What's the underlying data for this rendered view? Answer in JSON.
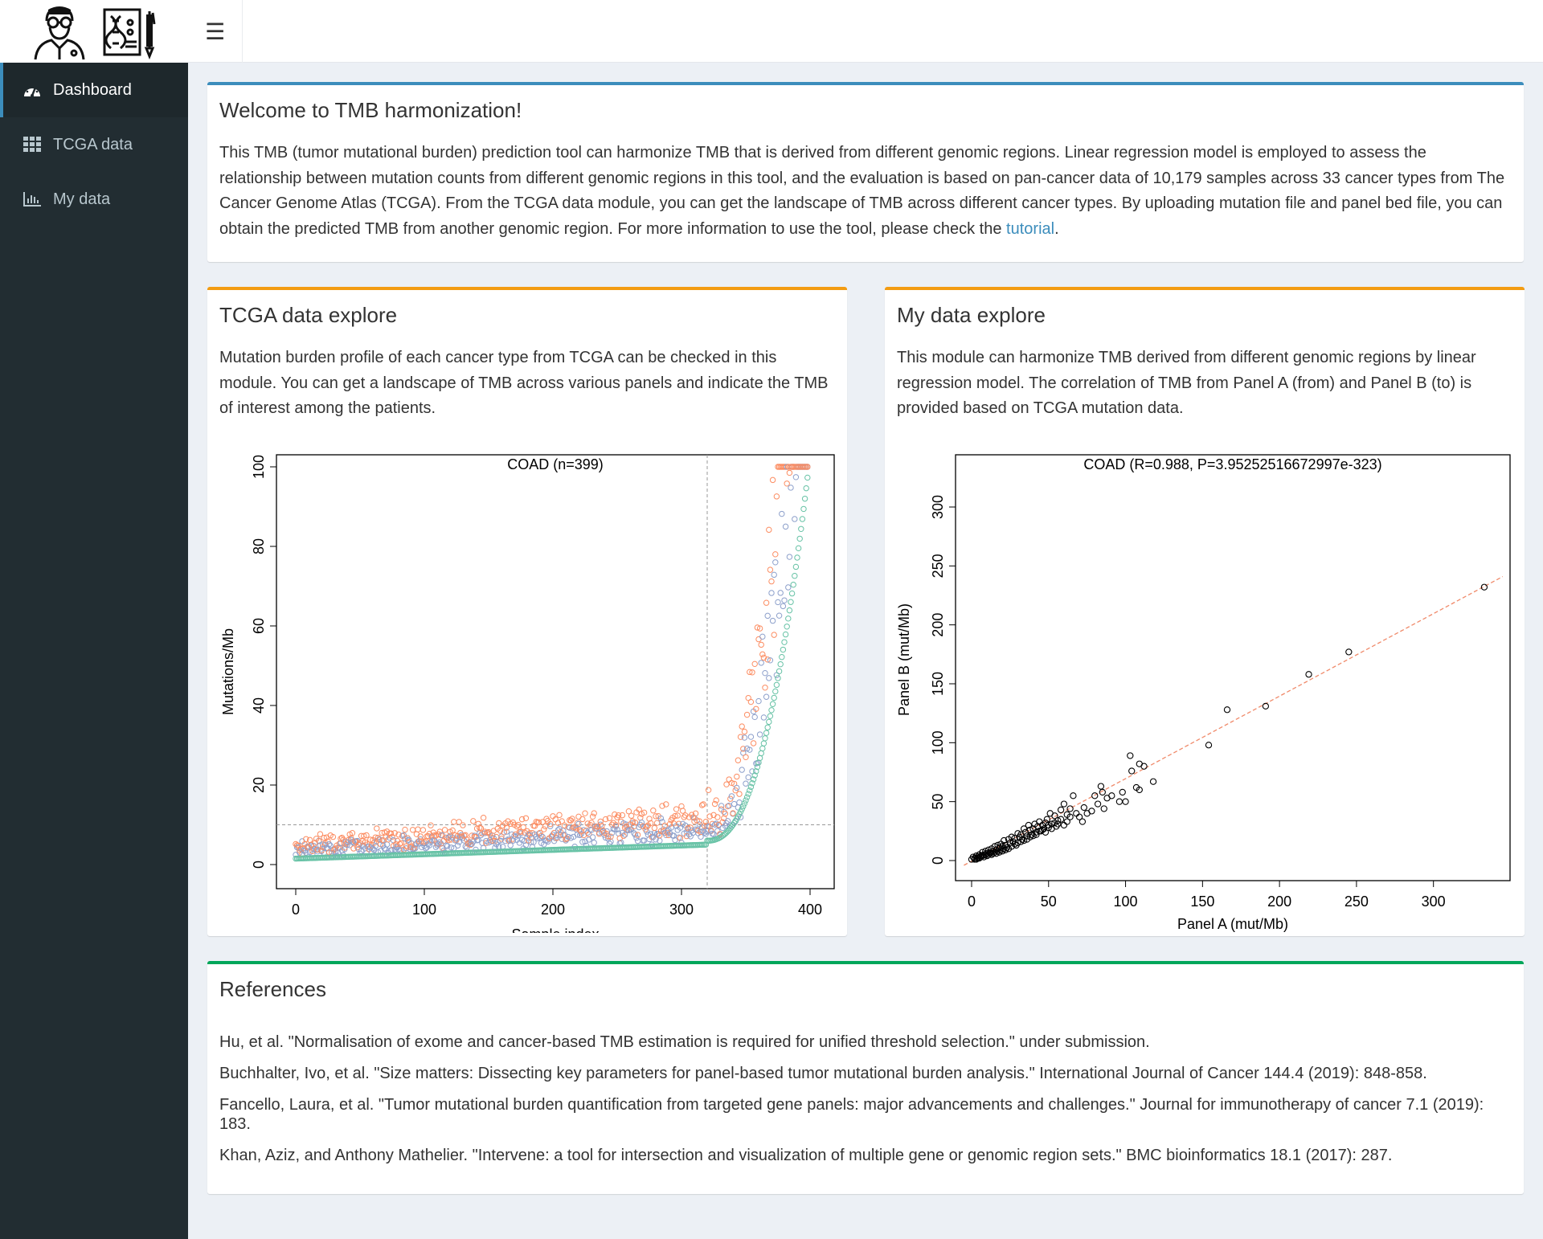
{
  "sidebar": {
    "items": [
      {
        "label": "Dashboard",
        "icon": "dashboard-gauge-icon",
        "active": true
      },
      {
        "label": "TCGA data",
        "icon": "grid-icon",
        "active": false
      },
      {
        "label": "My data",
        "icon": "bar-chart-icon",
        "active": false
      }
    ]
  },
  "header": {
    "menu_icon": "hamburger-icon",
    "logo_icons": [
      "doctor-icon",
      "dna-report-icon"
    ]
  },
  "welcome": {
    "title": "Welcome to TMB harmonization!",
    "text": "This TMB (tumor mutational burden) prediction tool can harmonize TMB that is derived from different genomic regions. Linear regression model is employed to assess the relationship between mutation counts from different genomic regions in this tool, and the evaluation is based on pan-cancer data of 10,179 samples across 33 cancer types from The Cancer Genome Atlas (TCGA). From the TCGA data module, you can get the landscape of TMB across different cancer types. By uploading mutation file and panel bed file, you can obtain the predicted TMB from another genomic region. For more information to use the tool, please check the ",
    "link": "tutorial",
    "tail": "."
  },
  "tcga": {
    "title": "TCGA data explore",
    "text": "Mutation burden profile of each cancer type from TCGA can be checked in this module. You can get a landscape of TMB across various panels and indicate the TMB of interest among the patients."
  },
  "mydata": {
    "title": "My data explore",
    "text": "This module can harmonize TMB derived from different genomic regions by linear regression model. The correlation of TMB from Panel A (from) and Panel B (to) is provided based on TCGA mutation data."
  },
  "references": {
    "title": "References",
    "items": [
      "Hu, et al. \"Normalisation of exome and cancer-based TMB estimation is required for unified threshold selection.\" under submission.",
      "Buchhalter, Ivo, et al. \"Size matters: Dissecting key parameters for panel-based tumor mutational burden analysis.\" International Journal of Cancer 144.4 (2019): 848-858.",
      "Fancello, Laura, et al. \"Tumor mutational burden quantification from targeted gene panels: major advancements and challenges.\" Journal for immunotherapy of cancer 7.1 (2019): 183.",
      "Khan, Aziz, and Anthony Mathelier. \"Intervene: a tool for intersection and visualization of multiple gene or genomic region sets.\" BMC bioinformatics 18.1 (2017): 287."
    ]
  },
  "chart_data": [
    {
      "type": "scatter",
      "title": "COAD (n=399)",
      "xlabel": "Sample index",
      "ylabel": "Mutations/Mb",
      "xlim": [
        0,
        400
      ],
      "ylim": [
        0,
        100
      ],
      "xticks": [
        0,
        100,
        200,
        300,
        400
      ],
      "yticks": [
        0,
        20,
        40,
        60,
        80,
        100
      ],
      "vline": 320,
      "hline": 10,
      "series_colors": [
        "#66c2a5",
        "#fc8d62",
        "#8da0cb"
      ],
      "n": 399,
      "knot": 320
    },
    {
      "type": "scatter",
      "title": "COAD (R=0.988, P=3.95252516672997e-323)",
      "xlabel": "Panel A (mut/Mb)",
      "ylabel": "Panel B (mut/Mb)",
      "xlim": [
        0,
        330
      ],
      "ylim": [
        0,
        310
      ],
      "xticks": [
        0,
        50,
        100,
        150,
        200,
        250,
        300
      ],
      "yticks": [
        0,
        50,
        100,
        150,
        200,
        250,
        300
      ],
      "fit_line": {
        "slope": 0.7,
        "intercept": -0.5,
        "color": "#f08a6a"
      },
      "points": [
        [
          333,
          232
        ],
        [
          245,
          177
        ],
        [
          219,
          158
        ],
        [
          191,
          131
        ],
        [
          166,
          128
        ],
        [
          154,
          98
        ],
        [
          118,
          67
        ],
        [
          112,
          80
        ],
        [
          109,
          82
        ],
        [
          104,
          76
        ],
        [
          103,
          89
        ],
        [
          109,
          60
        ],
        [
          107,
          62
        ],
        [
          98,
          58
        ],
        [
          100,
          50
        ],
        [
          96,
          50
        ],
        [
          91,
          55
        ],
        [
          88,
          53
        ],
        [
          86,
          44
        ],
        [
          85,
          58
        ],
        [
          84,
          63
        ],
        [
          82,
          48
        ],
        [
          80,
          55
        ],
        [
          78,
          42
        ],
        [
          75,
          40
        ],
        [
          73,
          45
        ],
        [
          72,
          33
        ],
        [
          70,
          37
        ],
        [
          68,
          40
        ],
        [
          66,
          55
        ],
        [
          64,
          44
        ],
        [
          62,
          39
        ],
        [
          60,
          48
        ],
        [
          58,
          43
        ],
        [
          56,
          34
        ],
        [
          55,
          29
        ],
        [
          54,
          38
        ],
        [
          52,
          31
        ],
        [
          51,
          40
        ],
        [
          50,
          28
        ],
        [
          49,
          35
        ],
        [
          48,
          32
        ],
        [
          47,
          27
        ],
        [
          46,
          30
        ],
        [
          45,
          25
        ],
        [
          44,
          33
        ],
        [
          43,
          29
        ],
        [
          42,
          24
        ],
        [
          41,
          31
        ],
        [
          40,
          27
        ],
        [
          39,
          22
        ],
        [
          38,
          26
        ],
        [
          37,
          30
        ],
        [
          36,
          21
        ],
        [
          35,
          24
        ],
        [
          34,
          27
        ],
        [
          33,
          18
        ],
        [
          32,
          22
        ],
        [
          31,
          20
        ],
        [
          30,
          23
        ],
        [
          28,
          19
        ],
        [
          27,
          16
        ],
        [
          26,
          20
        ],
        [
          25,
          15
        ],
        [
          24,
          18
        ],
        [
          22,
          13
        ],
        [
          21,
          17
        ],
        [
          20,
          12
        ],
        [
          19,
          14
        ],
        [
          18,
          11
        ],
        [
          17,
          13
        ],
        [
          16,
          9
        ],
        [
          15,
          12
        ],
        [
          14,
          8
        ],
        [
          13,
          10
        ],
        [
          12,
          7
        ],
        [
          11,
          9
        ],
        [
          10,
          6
        ],
        [
          9,
          8
        ],
        [
          8,
          5
        ],
        [
          7,
          7
        ],
        [
          6,
          4
        ],
        [
          5,
          5
        ],
        [
          4,
          3
        ],
        [
          3,
          4
        ],
        [
          2,
          2
        ],
        [
          1,
          3
        ],
        [
          0,
          1
        ],
        [
          14,
          6
        ],
        [
          13,
          5
        ],
        [
          12,
          6
        ],
        [
          11,
          5
        ],
        [
          10,
          4
        ],
        [
          9,
          5
        ],
        [
          8,
          3
        ],
        [
          7,
          4
        ],
        [
          6,
          3
        ],
        [
          5,
          2
        ],
        [
          4,
          2
        ],
        [
          3,
          1
        ],
        [
          2,
          1
        ],
        [
          15,
          7
        ],
        [
          16,
          6
        ],
        [
          17,
          8
        ],
        [
          18,
          7
        ],
        [
          19,
          9
        ],
        [
          20,
          8
        ],
        [
          21,
          10
        ],
        [
          22,
          9
        ],
        [
          23,
          11
        ],
        [
          24,
          10
        ],
        [
          26,
          12
        ],
        [
          28,
          14
        ],
        [
          29,
          13
        ],
        [
          30,
          15
        ],
        [
          32,
          16
        ],
        [
          34,
          17
        ],
        [
          36,
          18
        ],
        [
          38,
          20
        ],
        [
          40,
          21
        ],
        [
          42,
          22
        ],
        [
          44,
          25
        ],
        [
          46,
          26
        ],
        [
          48,
          24
        ],
        [
          50,
          30
        ],
        [
          52,
          27
        ],
        [
          54,
          32
        ],
        [
          56,
          31
        ],
        [
          58,
          35
        ],
        [
          60,
          30
        ],
        [
          62,
          33
        ],
        [
          64,
          37
        ]
      ]
    }
  ]
}
